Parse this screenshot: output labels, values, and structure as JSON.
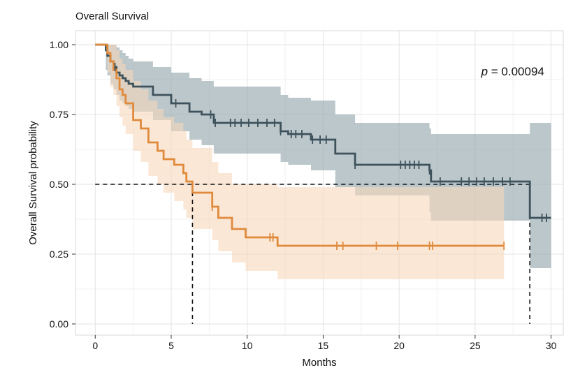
{
  "chart_data": {
    "type": "line",
    "title": "Overall Survival",
    "xlabel": "Months",
    "ylabel": "Overall Survival probability",
    "xlim": [
      -1.3,
      30.8
    ],
    "ylim": [
      -0.04,
      1.05
    ],
    "xticks": [
      0,
      5,
      10,
      15,
      20,
      25,
      30
    ],
    "xtick_labels": [
      "0",
      "5",
      "10",
      "15",
      "20",
      "25",
      "30"
    ],
    "yticks": [
      0,
      0.25,
      0.5,
      0.75,
      1
    ],
    "ytick_labels": [
      "0.00",
      "0.25",
      "0.50",
      "0.75",
      "1.00"
    ],
    "grid": true,
    "legend": "none",
    "annotation": {
      "p_label": "p",
      "p_value_text": " = 0.00094",
      "x": 25.4,
      "y": 0.89
    },
    "median_line": {
      "y": 0.5,
      "x_start": 0,
      "medians": [
        6.4,
        28.6
      ]
    },
    "series": [
      {
        "color": "#3e525c",
        "ci_color": "#8ea1a8",
        "x": [
          0,
          0.7,
          0.8,
          1.0,
          1.2,
          1.4,
          1.6,
          1.8,
          2.0,
          2.2,
          2.5,
          3.8,
          5.0,
          5.3,
          6.2,
          7.0,
          7.8,
          12.2,
          12.7,
          14.2,
          15.8,
          17.1,
          22.0,
          22.1,
          28.6,
          30.0
        ],
        "y": [
          1.0,
          0.98,
          0.96,
          0.94,
          0.92,
          0.9,
          0.89,
          0.88,
          0.87,
          0.86,
          0.85,
          0.82,
          0.79,
          0.79,
          0.76,
          0.75,
          0.72,
          0.69,
          0.68,
          0.66,
          0.61,
          0.57,
          0.55,
          0.51,
          0.38,
          0.38
        ],
        "lower": [
          1.0,
          0.91,
          0.89,
          0.86,
          0.84,
          0.82,
          0.8,
          0.79,
          0.78,
          0.77,
          0.76,
          0.73,
          0.69,
          0.69,
          0.66,
          0.64,
          0.61,
          0.58,
          0.57,
          0.55,
          0.49,
          0.46,
          0.4,
          0.37,
          0.2,
          0.2
        ],
        "upper": [
          1.0,
          1.0,
          1.0,
          1.0,
          1.0,
          0.99,
          0.98,
          0.97,
          0.96,
          0.95,
          0.94,
          0.92,
          0.9,
          0.9,
          0.88,
          0.87,
          0.85,
          0.82,
          0.81,
          0.8,
          0.75,
          0.72,
          0.7,
          0.68,
          0.72,
          0.72
        ],
        "censored": [
          1.3,
          5.3,
          7.6,
          7.9,
          8.9,
          9.2,
          9.6,
          10.1,
          10.7,
          11.3,
          11.8,
          12.2,
          12.9,
          13.2,
          13.6,
          14.3,
          14.8,
          15.2,
          17.1,
          20.1,
          20.4,
          20.7,
          21.0,
          21.3,
          22.0,
          22.7,
          24.1,
          24.6,
          25.1,
          25.6,
          26.2,
          26.8,
          27.3,
          29.4,
          29.7
        ]
      },
      {
        "color": "#e08a3c",
        "ci_color": "#f6d7bb",
        "x": [
          0,
          0.8,
          1.0,
          1.2,
          1.4,
          1.6,
          1.8,
          2.0,
          2.5,
          3.0,
          3.5,
          4.1,
          4.5,
          5.2,
          5.8,
          6.0,
          6.4,
          7.7,
          8.1,
          9.0,
          9.9,
          12.0,
          26.9
        ],
        "y": [
          1.0,
          0.97,
          0.94,
          0.91,
          0.88,
          0.84,
          0.82,
          0.79,
          0.73,
          0.7,
          0.65,
          0.62,
          0.59,
          0.57,
          0.54,
          0.51,
          0.47,
          0.42,
          0.38,
          0.34,
          0.31,
          0.28,
          0.28
        ],
        "lower": [
          1.0,
          0.9,
          0.85,
          0.82,
          0.78,
          0.74,
          0.71,
          0.68,
          0.62,
          0.58,
          0.53,
          0.5,
          0.47,
          0.44,
          0.41,
          0.38,
          0.34,
          0.3,
          0.26,
          0.22,
          0.19,
          0.16,
          0.16
        ],
        "upper": [
          1.0,
          1.0,
          1.0,
          1.0,
          0.98,
          0.95,
          0.93,
          0.91,
          0.87,
          0.84,
          0.8,
          0.77,
          0.74,
          0.72,
          0.69,
          0.66,
          0.63,
          0.58,
          0.54,
          0.5,
          0.5,
          0.49,
          0.49
        ],
        "censored": [
          7.7,
          11.5,
          11.7,
          15.9,
          16.3,
          18.5,
          19.9,
          22.0,
          22.2,
          26.9
        ]
      }
    ]
  }
}
